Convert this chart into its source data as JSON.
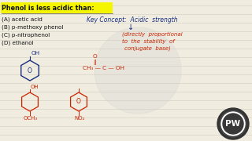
{
  "bg_color": "#f0ece0",
  "title_text": "Phenol is less acidic than:",
  "title_bg": "#f5f500",
  "options": [
    "(A) acetic acid",
    "(B) p-methoxy phenol",
    "(C) p-nitrophenol",
    "(D) ethanol"
  ],
  "key_concept": "Key Concept:  Acidic  strength",
  "arrow": "↓",
  "prop_line1": "(directly  proportional",
  "prop_line2": "to  the  stability  of",
  "prop_line3": "conjugate  base)",
  "acetic_o": "O",
  "acetic_bond": "||",
  "acetic_chain": "CH₃ — C — OH",
  "logo_text": "PW",
  "line_color": "#d0ccc0",
  "blue_color": "#2244aa",
  "dark_blue": "#1a3080",
  "red_color": "#cc2200",
  "navy_color": "#223388"
}
